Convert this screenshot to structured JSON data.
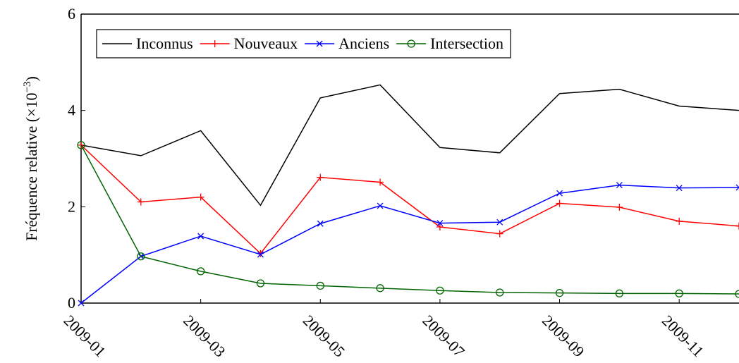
{
  "chart_data": {
    "type": "line",
    "y_label": {
      "text": "Fréquence relative (×10",
      "exponent": "−3",
      "suffix": ")"
    },
    "categories": [
      "2009-01",
      null,
      "2009-03",
      null,
      "2009-05",
      null,
      "2009-07",
      null,
      "2009-09",
      null,
      "2009-11",
      null
    ],
    "series": [
      {
        "name": "Inconnus",
        "color": "#000000",
        "values": [
          3.28,
          3.06,
          3.58,
          2.03,
          4.26,
          4.53,
          3.23,
          3.12,
          4.35,
          4.44,
          4.09,
          4.0
        ]
      },
      {
        "name": "Nouveaux",
        "color": "#ff0000",
        "marker": "plus",
        "values": [
          3.28,
          2.1,
          2.2,
          1.03,
          2.61,
          2.51,
          1.58,
          1.44,
          2.07,
          1.99,
          1.7,
          1.6
        ]
      },
      {
        "name": "Anciens",
        "color": "#0000ff",
        "marker": "x",
        "values": [
          0,
          0.97,
          1.39,
          1.01,
          1.65,
          2.02,
          1.66,
          1.68,
          2.28,
          2.45,
          2.39,
          2.4
        ]
      },
      {
        "name": "Intersection",
        "color": "#006400",
        "marker": "circle",
        "values": [
          3.28,
          0.97,
          0.66,
          0.41,
          0.36,
          0.31,
          0.26,
          0.22,
          0.21,
          0.2,
          0.2,
          0.19
        ]
      }
    ],
    "ylim": [
      0,
      6
    ],
    "yticks": [
      0,
      2,
      4,
      6
    ],
    "legend": "top-left"
  }
}
